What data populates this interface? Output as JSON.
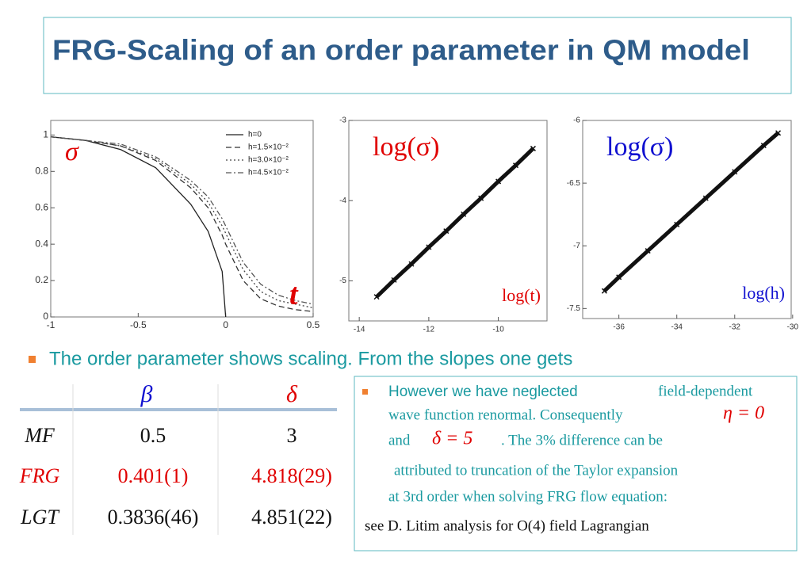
{
  "header": {
    "title": "FRG-Scaling of an order parameter in QM model"
  },
  "chart_data": [
    {
      "type": "line",
      "annotations": [
        "σ",
        "t"
      ],
      "annotation_color": "#e00000",
      "x": [
        -1,
        -0.8,
        -0.6,
        -0.4,
        -0.2,
        -0.1,
        -0.02,
        0,
        0.1,
        0.2,
        0.3,
        0.4,
        0.5
      ],
      "series": [
        {
          "name": "h=0",
          "color": "#222222",
          "dash": "solid",
          "values": [
            0.99,
            0.97,
            0.92,
            0.82,
            0.62,
            0.47,
            0.25,
            0,
            null,
            null,
            null,
            null,
            null
          ]
        },
        {
          "name": "h=1.5×10⁻²",
          "color": "#333333",
          "dash": "dashed",
          "values": [
            0.99,
            0.97,
            0.94,
            0.86,
            0.71,
            0.6,
            0.45,
            0.4,
            0.2,
            0.1,
            0.06,
            0.04,
            0.03
          ]
        },
        {
          "name": "h=3.0×10⁻²",
          "color": "#444444",
          "dash": "dotted",
          "values": [
            0.99,
            0.97,
            0.94,
            0.87,
            0.73,
            0.63,
            0.5,
            0.46,
            0.26,
            0.14,
            0.09,
            0.07,
            0.05
          ]
        },
        {
          "name": "h=4.5×10⁻²",
          "color": "#555555",
          "dash": "dashdot",
          "values": [
            0.99,
            0.97,
            0.95,
            0.88,
            0.75,
            0.66,
            0.54,
            0.5,
            0.3,
            0.18,
            0.12,
            0.09,
            0.07
          ]
        }
      ],
      "xlim": [
        -1,
        0.5
      ],
      "xticks": [
        -1,
        -0.5,
        0,
        0.5
      ],
      "ylim": [
        0,
        1.08
      ],
      "yticks": [
        0,
        0.2,
        0.4,
        0.6,
        0.8,
        1
      ],
      "legend": "top-right"
    },
    {
      "type": "line",
      "markers": true,
      "title": "log(σ)",
      "xlabel": "log(t)",
      "text_color": "#e00000",
      "x": [
        -13.5,
        -13,
        -12.5,
        -12,
        -11.5,
        -11,
        -10.5,
        -10,
        -9.5,
        -9
      ],
      "series": [
        {
          "color": "#111111",
          "values": [
            -5.2,
            -4.99,
            -4.79,
            -4.58,
            -4.38,
            -4.17,
            -3.97,
            -3.76,
            -3.56,
            -3.35
          ]
        }
      ],
      "xlim": [
        -14.3,
        -8.6
      ],
      "xticks": [
        -14,
        -12,
        -10
      ],
      "ylim": [
        -5.5,
        -3
      ],
      "yticks": [
        -5,
        -4,
        -3
      ]
    },
    {
      "type": "line",
      "markers": true,
      "title": "log(σ)",
      "xlabel": "log(h)",
      "text_color": "#1010d0",
      "x": [
        -36.5,
        -36,
        -35,
        -34,
        -33,
        -32,
        -31,
        -30.5
      ],
      "series": [
        {
          "color": "#111111",
          "values": [
            -7.36,
            -7.25,
            -7.04,
            -6.83,
            -6.62,
            -6.41,
            -6.2,
            -6.1
          ]
        }
      ],
      "xlim": [
        -37.25,
        -30.05
      ],
      "xticks": [
        -36,
        -34,
        -32,
        -30
      ],
      "ylim": [
        -7.58,
        -6
      ],
      "yticks": [
        -7.5,
        -7,
        -6.5,
        -6
      ]
    }
  ],
  "bullet": "The order parameter shows scaling. From the  slopes one gets",
  "table": {
    "columns": [
      "β",
      "δ"
    ],
    "rows": [
      {
        "label": "MF",
        "cells": [
          "0.5",
          "3"
        ]
      },
      {
        "label": "FRG",
        "cells": [
          "0.401(1)",
          "4.818(29)"
        ]
      },
      {
        "label": "LGT",
        "cells": [
          "0.3836(46)",
          "4.851(22)"
        ]
      }
    ]
  },
  "note": {
    "lead": "However we have neglected",
    "line1": "field-dependent",
    "line2": "wave function renormal.  Consequently",
    "eta": "η = 0",
    "and": "and",
    "delta": "δ = 5",
    "line3": ". The 3% difference  can be",
    "line4": "attributed to truncation of the Taylor expansion",
    "line5": "at 3rd order  when  solving FRG  flow equation:",
    "ref": "see D. Litim  analysis  for O(4) field Lagrangian"
  }
}
